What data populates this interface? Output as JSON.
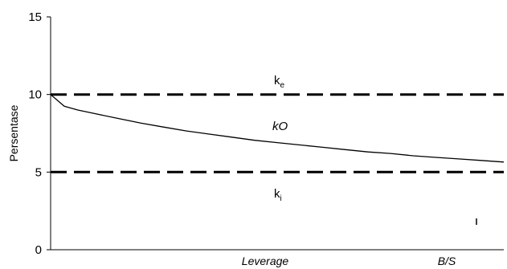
{
  "chart_data": {
    "type": "line",
    "ylabel": "Persentase",
    "xlabel": "Leverage",
    "x_end_label": "B/S",
    "ylim": [
      0,
      15
    ],
    "yticks": [
      0,
      5,
      10,
      15
    ],
    "ytick_labels": [
      "0",
      "5",
      "10",
      "15"
    ],
    "grid": false,
    "legend": "none",
    "x": [
      0,
      0.03,
      0.06,
      0.1,
      0.15,
      0.2,
      0.25,
      0.3,
      0.35,
      0.4,
      0.45,
      0.5,
      0.55,
      0.6,
      0.65,
      0.7,
      0.75,
      0.8,
      0.85,
      0.9,
      0.95,
      1.0
    ],
    "series": [
      {
        "name": "k",
        "subscript": "e",
        "style": "dashed",
        "values": [
          10,
          10,
          10,
          10,
          10,
          10,
          10,
          10,
          10,
          10,
          10,
          10,
          10,
          10,
          10,
          10,
          10,
          10,
          10,
          10,
          10,
          10
        ]
      },
      {
        "name": "k",
        "subscript": "O",
        "style": "solid",
        "values": [
          10.0,
          9.25,
          9.0,
          8.75,
          8.45,
          8.15,
          7.9,
          7.65,
          7.45,
          7.25,
          7.05,
          6.9,
          6.75,
          6.6,
          6.45,
          6.3,
          6.2,
          6.05,
          5.95,
          5.85,
          5.75,
          5.65
        ]
      },
      {
        "name": "k",
        "subscript": "i",
        "style": "dashed",
        "values": [
          5,
          5,
          5,
          5,
          5,
          5,
          5,
          5,
          5,
          5,
          5,
          5,
          5,
          5,
          5,
          5,
          5,
          5,
          5,
          5,
          5,
          5
        ]
      }
    ],
    "colors": {
      "line": "#000000",
      "axis": "#000000",
      "background": "#ffffff"
    }
  }
}
